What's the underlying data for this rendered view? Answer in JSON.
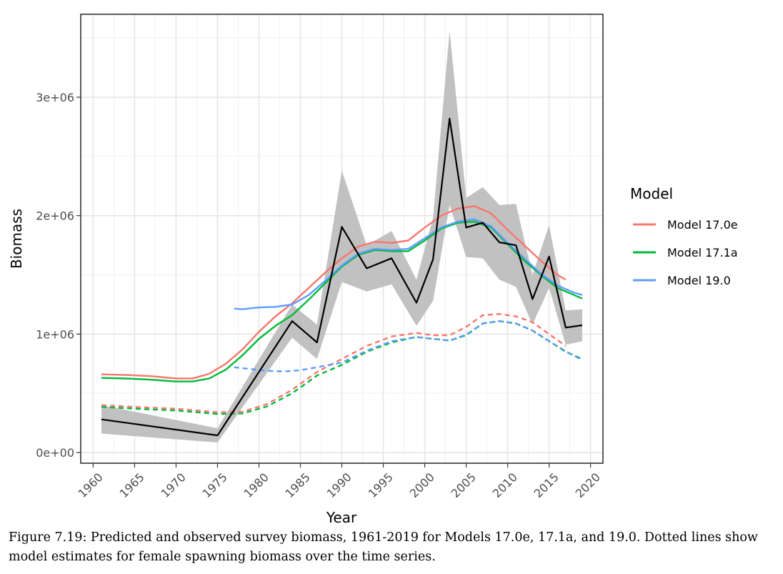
{
  "chart_data": {
    "type": "line",
    "xlabel": "Year",
    "ylabel": "Biomass",
    "xlim": [
      1958.5,
      2021.5
    ],
    "ylim": [
      -90000,
      3700000
    ],
    "x_ticks": [
      1960,
      1965,
      1970,
      1975,
      1980,
      1985,
      1990,
      1995,
      2000,
      2005,
      2010,
      2015,
      2020
    ],
    "y_ticks": [
      0,
      1000000,
      2000000,
      3000000
    ],
    "y_tick_labels": [
      "0e+00",
      "1e+06",
      "2e+06",
      "3e+06"
    ],
    "grid": true,
    "legend": {
      "title": "Model",
      "position": "right",
      "entries": [
        "Model 17.0e",
        "Model 17.1a",
        "Model 19.0"
      ]
    },
    "observed": {
      "color": "#000000",
      "band_color": "#bebebe",
      "points": [
        {
          "x": 1961,
          "y": 280000,
          "lo": 160000,
          "hi": 400000
        },
        {
          "x": 1975,
          "y": 145000,
          "lo": 85000,
          "hi": 205000
        },
        {
          "x": 1984,
          "y": 1110000,
          "lo": 970000,
          "hi": 1250000
        },
        {
          "x": 1987,
          "y": 930000,
          "lo": 790000,
          "hi": 1080000
        },
        {
          "x": 1990,
          "y": 1905000,
          "lo": 1440000,
          "hi": 2380000
        },
        {
          "x": 1993,
          "y": 1555000,
          "lo": 1360000,
          "hi": 1750000
        },
        {
          "x": 1996,
          "y": 1640000,
          "lo": 1420000,
          "hi": 1870000
        },
        {
          "x": 1999,
          "y": 1265000,
          "lo": 1070000,
          "hi": 1460000
        },
        {
          "x": 2001,
          "y": 1630000,
          "lo": 1280000,
          "hi": 1980000
        },
        {
          "x": 2003,
          "y": 2820000,
          "lo": 2090000,
          "hi": 3560000
        },
        {
          "x": 2005,
          "y": 1900000,
          "lo": 1650000,
          "hi": 2150000
        },
        {
          "x": 2007,
          "y": 1940000,
          "lo": 1640000,
          "hi": 2240000
        },
        {
          "x": 2009,
          "y": 1775000,
          "lo": 1460000,
          "hi": 2090000
        },
        {
          "x": 2011,
          "y": 1750000,
          "lo": 1400000,
          "hi": 2100000
        },
        {
          "x": 2013,
          "y": 1295000,
          "lo": 1080000,
          "hi": 1500000
        },
        {
          "x": 2015,
          "y": 1655000,
          "lo": 1390000,
          "hi": 1920000
        },
        {
          "x": 2017,
          "y": 1055000,
          "lo": 910000,
          "hi": 1200000
        },
        {
          "x": 2019,
          "y": 1075000,
          "lo": 940000,
          "hi": 1210000
        }
      ]
    },
    "series": [
      {
        "name": "Model 17.0e",
        "color": "#f8766d",
        "x": [
          1961,
          1964,
          1967,
          1970,
          1972,
          1974,
          1976,
          1978,
          1980,
          1982,
          1984,
          1986,
          1988,
          1990,
          1992,
          1994,
          1996,
          1998,
          2000,
          2002,
          2004,
          2006,
          2008,
          2010,
          2012,
          2014,
          2016,
          2017
        ],
        "y": [
          660000,
          655000,
          645000,
          625000,
          625000,
          665000,
          750000,
          870000,
          1020000,
          1150000,
          1260000,
          1390000,
          1520000,
          1640000,
          1740000,
          1780000,
          1770000,
          1790000,
          1900000,
          2000000,
          2060000,
          2080000,
          2020000,
          1880000,
          1750000,
          1620000,
          1500000,
          1460000
        ]
      },
      {
        "name": "Model 17.1a",
        "color": "#00ba38",
        "x": [
          1961,
          1964,
          1967,
          1970,
          1972,
          1974,
          1976,
          1978,
          1980,
          1982,
          1984,
          1986,
          1988,
          1990,
          1992,
          1994,
          1996,
          1998,
          2000,
          2002,
          2004,
          2006,
          2008,
          2010,
          2012,
          2014,
          2016,
          2018,
          2019
        ],
        "y": [
          630000,
          625000,
          615000,
          600000,
          600000,
          625000,
          700000,
          820000,
          960000,
          1070000,
          1160000,
          1290000,
          1430000,
          1570000,
          1670000,
          1710000,
          1700000,
          1700000,
          1790000,
          1890000,
          1940000,
          1950000,
          1900000,
          1760000,
          1620000,
          1500000,
          1390000,
          1330000,
          1300000
        ]
      },
      {
        "name": "Model 19.0",
        "color": "#619cff",
        "x": [
          1977,
          1978,
          1980,
          1982,
          1984,
          1986,
          1988,
          1990,
          1992,
          1994,
          1996,
          1998,
          2000,
          2002,
          2004,
          2006,
          2008,
          2010,
          2012,
          2014,
          2016,
          2018,
          2019
        ],
        "y": [
          1215000,
          1210000,
          1225000,
          1230000,
          1250000,
          1330000,
          1450000,
          1580000,
          1680000,
          1720000,
          1710000,
          1720000,
          1810000,
          1900000,
          1950000,
          1970000,
          1910000,
          1770000,
          1640000,
          1510000,
          1410000,
          1350000,
          1330000
        ]
      }
    ],
    "spawning_series": [
      {
        "name": "Model 17.0e",
        "color": "#f8766d",
        "x": [
          1961,
          1965,
          1970,
          1975,
          1978,
          1981,
          1984,
          1987,
          1990,
          1993,
          1996,
          1999,
          2001,
          2003,
          2005,
          2007,
          2009,
          2011,
          2013,
          2015,
          2017
        ],
        "y": [
          400000,
          385000,
          370000,
          340000,
          345000,
          410000,
          530000,
          680000,
          790000,
          900000,
          980000,
          1010000,
          990000,
          990000,
          1060000,
          1160000,
          1170000,
          1150000,
          1100000,
          1000000,
          900000
        ]
      },
      {
        "name": "Model 17.1a",
        "color": "#00ba38",
        "x": [
          1961,
          1965,
          1970,
          1975,
          1978,
          1981,
          1984,
          1987,
          1990,
          1993,
          1996,
          1999,
          2001,
          2003,
          2005,
          2007,
          2009,
          2011,
          2013,
          2015,
          2017,
          2019
        ],
        "y": [
          385000,
          370000,
          355000,
          325000,
          330000,
          390000,
          500000,
          650000,
          740000,
          850000,
          930000,
          975000,
          960000,
          945000,
          990000,
          1090000,
          1110000,
          1090000,
          1030000,
          940000,
          850000,
          790000
        ]
      },
      {
        "name": "Model 19.0",
        "color": "#619cff",
        "x": [
          1977,
          1979,
          1981,
          1983,
          1985,
          1987,
          1990,
          1993,
          1996,
          1999,
          2001,
          2003,
          2005,
          2007,
          2009,
          2011,
          2013,
          2015,
          2017,
          2019
        ],
        "y": [
          720000,
          705000,
          690000,
          685000,
          695000,
          720000,
          760000,
          860000,
          940000,
          975000,
          960000,
          945000,
          995000,
          1090000,
          1110000,
          1090000,
          1030000,
          940000,
          855000,
          780000
        ]
      }
    ]
  },
  "caption": "Figure 7.19: Predicted and observed survey biomass, 1961-2019 for Models 17.0e, 17.1a, and 19.0. Dotted lines show model estimates for female spawning biomass over the time series."
}
